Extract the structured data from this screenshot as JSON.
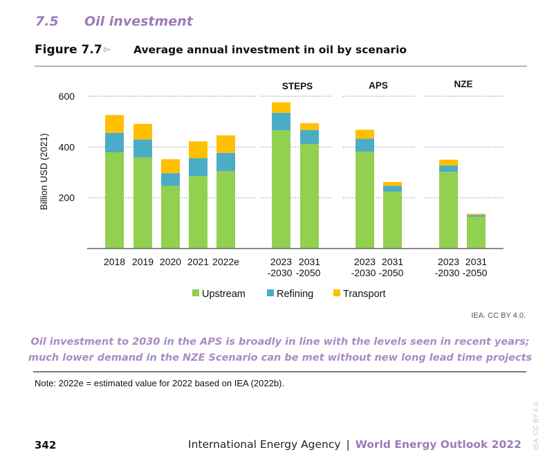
{
  "section": {
    "number": "7.5",
    "title": "Oil investment"
  },
  "figure": {
    "label": "Figure 7.7",
    "arrow_icon": "triangle-right-icon",
    "title": "Average annual investment in oil by scenario"
  },
  "credit": "IEA. CC BY 4.0.",
  "caption": {
    "line1": "Oil investment to 2030 in the APS is broadly in line with the levels seen in recent years;",
    "line2": "much lower demand in the NZE Scenario can be met without new long lead time projects"
  },
  "note": "Note: 2022e = estimated value for 2022 based on IEA (2022b).",
  "footer": {
    "page_number": "342",
    "org": "International Energy Agency",
    "separator": "|",
    "publication": "World Energy Outlook 2022",
    "side_credit": "IEA. CC BY 4.0."
  },
  "colors": {
    "upstream": "#92d050",
    "refining": "#4bacc6",
    "transport": "#ffc000",
    "accent": "#9b7bb8"
  },
  "chart_data": {
    "type": "bar",
    "stacked": true,
    "title": "Average annual investment in oil by scenario",
    "xlabel": "",
    "ylabel": "Billion USD (2021)",
    "ylim": [
      0,
      600
    ],
    "yticks": [
      200,
      400,
      600
    ],
    "grid": true,
    "legend_position": "bottom",
    "groups": [
      {
        "name": "",
        "categories": [
          {
            "line1": "2018",
            "line2": ""
          },
          {
            "line1": "2019",
            "line2": ""
          },
          {
            "line1": "2020",
            "line2": ""
          },
          {
            "line1": "2021",
            "line2": ""
          },
          {
            "line1": "2022e",
            "line2": ""
          }
        ]
      },
      {
        "name": "STEPS",
        "categories": [
          {
            "line1": "2023",
            "line2": "-2030"
          },
          {
            "line1": "2031",
            "line2": "-2050"
          }
        ]
      },
      {
        "name": "APS",
        "categories": [
          {
            "line1": "2023",
            "line2": "-2030"
          },
          {
            "line1": "2031",
            "line2": "-2050"
          }
        ]
      },
      {
        "name": "NZE",
        "categories": [
          {
            "line1": "2023",
            "line2": "-2030"
          },
          {
            "line1": "2031",
            "line2": "-2050"
          }
        ]
      }
    ],
    "categories": [
      "2018",
      "2019",
      "2020",
      "2021",
      "2022e",
      "STEPS 2023-2030",
      "STEPS 2031-2050",
      "APS 2023-2030",
      "APS 2031-2050",
      "NZE 2023-2030",
      "NZE 2031-2050"
    ],
    "series": [
      {
        "name": "Upstream",
        "color": "#92d050",
        "values": [
          379,
          359,
          247,
          286,
          305,
          466,
          412,
          382,
          224,
          302,
          125
        ]
      },
      {
        "name": "Refining",
        "color": "#4bacc6",
        "values": [
          77,
          71,
          50,
          70,
          72,
          69,
          55,
          51,
          23,
          25,
          7
        ]
      },
      {
        "name": "Transport",
        "color": "#ffc000",
        "values": [
          70,
          61,
          55,
          66,
          69,
          41,
          27,
          35,
          15,
          23,
          5
        ]
      }
    ]
  }
}
